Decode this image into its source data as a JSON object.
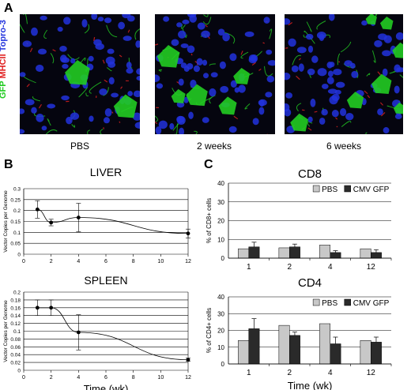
{
  "panel_a": {
    "letter": "A",
    "stain_labels": {
      "gfp": "GFP",
      "mhcii": "MHCII",
      "topro": "Topro-3"
    },
    "colors": {
      "gfp": "#22cc22",
      "mhcii": "#e02020",
      "topro": "#2233dd"
    },
    "conditions": [
      "PBS",
      "2 weeks",
      "6 weeks"
    ]
  },
  "panel_b": {
    "letter": "B"
  },
  "panel_c": {
    "letter": "C"
  },
  "chart_data": [
    {
      "type": "line",
      "title": "LIVER",
      "xlabel": "",
      "ylabel": "Vector Copies per Genome",
      "ylim": [
        0,
        0.3
      ],
      "yticks": [
        "0",
        "0.05",
        "0.1",
        "0.15",
        "0.2",
        "0.25",
        "0.3"
      ],
      "xlim": [
        0,
        12
      ],
      "xticks": [
        "0",
        "2",
        "4",
        "6",
        "8",
        "10",
        "12"
      ],
      "grid": true,
      "x": [
        1,
        2,
        4,
        12
      ],
      "y": [
        0.205,
        0.145,
        0.168,
        0.095
      ],
      "err": [
        0.04,
        0.015,
        0.065,
        0.02
      ]
    },
    {
      "type": "line",
      "title": "SPLEEN",
      "xlabel": "Time (wk)",
      "ylabel": "Vector Copies per Genome",
      "ylim": [
        0,
        0.2
      ],
      "yticks": [
        "0",
        "0.02",
        "0.04",
        "0.06",
        "0.08",
        "0.1",
        "0.12",
        "0.14",
        "0.16",
        "0.18",
        "0.2"
      ],
      "xlim": [
        0,
        12
      ],
      "xticks": [
        "0",
        "2",
        "4",
        "6",
        "8",
        "10",
        "12"
      ],
      "grid": true,
      "x": [
        1,
        2,
        4,
        12
      ],
      "y": [
        0.16,
        0.16,
        0.097,
        0.027
      ],
      "err": [
        0.02,
        0.02,
        0.045,
        0.004
      ]
    },
    {
      "type": "bar",
      "title": "CD8",
      "xlabel": "",
      "ylabel": "% of CD8+ cells",
      "ylim": [
        0,
        40
      ],
      "yticks": [
        "0",
        "10",
        "20",
        "30",
        "40"
      ],
      "grid": true,
      "legend": "top-right",
      "categories": [
        "1",
        "2",
        "4",
        "12"
      ],
      "series": [
        {
          "name": "PBS",
          "color": "#c8c8c8",
          "values": [
            5,
            5.5,
            7,
            5
          ],
          "err": [
            0,
            0,
            0,
            0
          ]
        },
        {
          "name": "CMV GFP",
          "color": "#2a2a2a",
          "values": [
            6,
            6,
            3,
            3
          ],
          "err": [
            2.5,
            1.5,
            1,
            1.5
          ]
        }
      ]
    },
    {
      "type": "bar",
      "title": "CD4",
      "xlabel": "Time (wk)",
      "ylabel": "% of CD4+ cells",
      "ylim": [
        0,
        40
      ],
      "yticks": [
        "0",
        "10",
        "20",
        "30",
        "40"
      ],
      "grid": true,
      "legend": "top-right",
      "categories": [
        "1",
        "2",
        "4",
        "12"
      ],
      "series": [
        {
          "name": "PBS",
          "color": "#c8c8c8",
          "values": [
            14,
            23,
            24,
            14
          ],
          "err": [
            0,
            0,
            0,
            0
          ]
        },
        {
          "name": "CMV GFP",
          "color": "#2a2a2a",
          "values": [
            21,
            17,
            12,
            13
          ],
          "err": [
            6,
            2,
            4,
            3
          ]
        }
      ]
    }
  ]
}
